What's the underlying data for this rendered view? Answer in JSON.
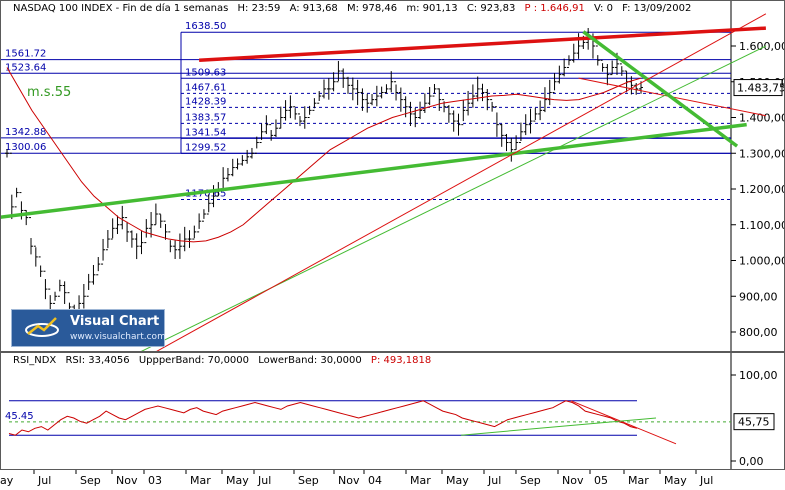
{
  "header": {
    "title": "NASDAQ 100 INDEX - Fin de día 1 semanas",
    "h": "H: 23:59",
    "a": "A: 913,68",
    "m": "M: 978,46",
    "m2": "m: 901,13",
    "c": "C: 923,83",
    "p": "P : 1.646,91",
    "v": "V: 0",
    "f": "F: 13/09/2002"
  },
  "rsi_header": {
    "name": "RSI_NDX",
    "rsi": "RSI: 33,4056",
    "upper": "UppperBand: 70,0000",
    "lower": "LowerBand: 30,0000",
    "p": "P: 493,1818"
  },
  "logo": {
    "title": "Visual Chart",
    "url": "www.visualchart.com"
  },
  "colors": {
    "price": "#000000",
    "ma": "#cc0000",
    "levels": "#0000aa",
    "green": "#44bb33",
    "red": "#dd1111",
    "rsi": "#cc0000"
  },
  "chart_data": [
    {
      "type": "line",
      "ylim": [
        700,
        1700
      ],
      "yticks": [
        800,
        900,
        1000,
        1100,
        1200,
        1300,
        1400,
        1500,
        1600
      ],
      "ytick_labels": [
        "800,00",
        "900,00",
        "1.000,00",
        "1.100,00",
        "1.200,00",
        "1.300,00",
        "1.400,00",
        "1.500,00",
        "1.600,00"
      ],
      "current_price": "1.483,75",
      "ma_label": "m.s.55",
      "levels": [
        {
          "value": 1638.5,
          "label": "1638.50"
        },
        {
          "value": 1561.72,
          "label": "1561.72"
        },
        {
          "value": 1523.64,
          "label": "1523.64"
        },
        {
          "value": 1509.63,
          "label": "1509.63"
        },
        {
          "value": 1467.61,
          "label": "1467.61"
        },
        {
          "value": 1428.39,
          "label": "1428.39"
        },
        {
          "value": 1383.57,
          "label": "1383.57"
        },
        {
          "value": 1342.88,
          "label": "1342.88"
        },
        {
          "value": 1341.54,
          "label": "1341.54"
        },
        {
          "value": 1300.06,
          "label": "1300.06"
        },
        {
          "value": 1299.52,
          "label": "1299.52"
        },
        {
          "value": 1170.65,
          "label": "1170.65"
        }
      ],
      "series": [
        {
          "name": "NASDAQ 100 INDEX",
          "weekly_close": [
            1300,
            1150,
            1190,
            1140,
            1120,
            1040,
            1010,
            970,
            920,
            880,
            900,
            930,
            910,
            870,
            860,
            880,
            900,
            940,
            960,
            990,
            1030,
            1060,
            1090,
            1100,
            1120,
            1080,
            1060,
            1040,
            1050,
            1090,
            1100,
            1130,
            1110,
            1080,
            1040,
            1030,
            1040,
            1060,
            1060,
            1080,
            1110,
            1130,
            1160,
            1180,
            1200,
            1230,
            1240,
            1260,
            1270,
            1280,
            1290,
            1300,
            1330,
            1360,
            1380,
            1350,
            1370,
            1400,
            1420,
            1430,
            1410,
            1390,
            1400,
            1420,
            1440,
            1460,
            1480,
            1480,
            1500,
            1530,
            1510,
            1490,
            1480,
            1470,
            1450,
            1440,
            1450,
            1460,
            1470,
            1480,
            1500,
            1470,
            1450,
            1430,
            1410,
            1400,
            1420,
            1440,
            1460,
            1480,
            1450,
            1430,
            1410,
            1390,
            1380,
            1420,
            1440,
            1460,
            1480,
            1470,
            1450,
            1430,
            1380,
            1350,
            1330,
            1310,
            1330,
            1360,
            1380,
            1390,
            1410,
            1420,
            1450,
            1470,
            1500,
            1520,
            1540,
            1560,
            1580,
            1600,
            1610,
            1620,
            1600,
            1560,
            1540,
            1520,
            1540,
            1550,
            1530,
            1500,
            1490,
            1480,
            1484
          ]
        },
        {
          "name": "m.s.55",
          "values": [
            1540,
            1480,
            1420,
            1370,
            1320,
            1270,
            1220,
            1180,
            1150,
            1120,
            1100,
            1080,
            1070,
            1060,
            1055,
            1052,
            1055,
            1065,
            1080,
            1100,
            1130,
            1160,
            1190,
            1220,
            1250,
            1280,
            1310,
            1330,
            1350,
            1370,
            1385,
            1400,
            1410,
            1420,
            1430,
            1440,
            1445,
            1450,
            1455,
            1460,
            1462,
            1465,
            1460,
            1455,
            1450,
            1448,
            1450,
            1460,
            1470,
            1485,
            1500,
            1510
          ]
        }
      ],
      "trendlines": [
        {
          "color": "red",
          "points": [
            [
              40,
              1560
            ],
            [
              158,
              1650
            ]
          ]
        },
        {
          "color": "red",
          "points": [
            [
              119,
              1510
            ],
            [
              158,
              1405
            ]
          ]
        },
        {
          "color": "green",
          "points": [
            [
              120,
              1640
            ],
            [
              152,
              1320
            ]
          ]
        },
        {
          "color": "green",
          "points": [
            [
              -8,
              1110
            ],
            [
              154,
              1380
            ]
          ]
        },
        {
          "color": "green",
          "points": [
            [
              21,
              700
            ],
            [
              158,
              1600
            ]
          ]
        },
        {
          "color": "red",
          "points": [
            [
              25,
              700
            ],
            [
              158,
              1690
            ]
          ]
        }
      ]
    },
    {
      "type": "line",
      "ylim": [
        -10,
        110
      ],
      "yticks": [
        0,
        100
      ],
      "ytick_labels": [
        "0,00",
        "100,00"
      ],
      "current_value": "45,75",
      "bands": [
        70,
        30
      ],
      "level": {
        "value": 45.45,
        "label": "45.45"
      },
      "x_labels": [
        "ay",
        "Jul",
        "Sep",
        "Nov",
        "03",
        "Mar",
        "May",
        "Jul",
        "Sep",
        "Nov",
        "04",
        "Mar",
        "May",
        "Jul",
        "Sep",
        "Nov",
        "05",
        "Mar",
        "May",
        "Jul"
      ],
      "series": [
        {
          "name": "RSI_NDX",
          "values": [
            32,
            30,
            36,
            34,
            38,
            40,
            36,
            42,
            48,
            52,
            50,
            46,
            44,
            48,
            52,
            58,
            54,
            50,
            48,
            52,
            56,
            60,
            62,
            64,
            62,
            60,
            58,
            56,
            60,
            62,
            58,
            56,
            54,
            58,
            60,
            62,
            64,
            66,
            68,
            66,
            64,
            62,
            60,
            64,
            66,
            68,
            66,
            64,
            62,
            60,
            58,
            56,
            54,
            52,
            50,
            52,
            54,
            56,
            58,
            60,
            62,
            64,
            66,
            68,
            70,
            66,
            62,
            58,
            56,
            54,
            50,
            48,
            46,
            44,
            42,
            40,
            44,
            48,
            50,
            52,
            54,
            56,
            58,
            60,
            62,
            66,
            70,
            68,
            64,
            58,
            56,
            54,
            52,
            50,
            46,
            44,
            40,
            38
          ]
        }
      ],
      "trendlines": [
        {
          "color": "red",
          "points": [
            [
              570,
              70
            ],
            [
              675,
              20
            ]
          ]
        },
        {
          "color": "green",
          "points": [
            [
              460,
              30
            ],
            [
              655,
              50
            ]
          ]
        }
      ]
    }
  ]
}
